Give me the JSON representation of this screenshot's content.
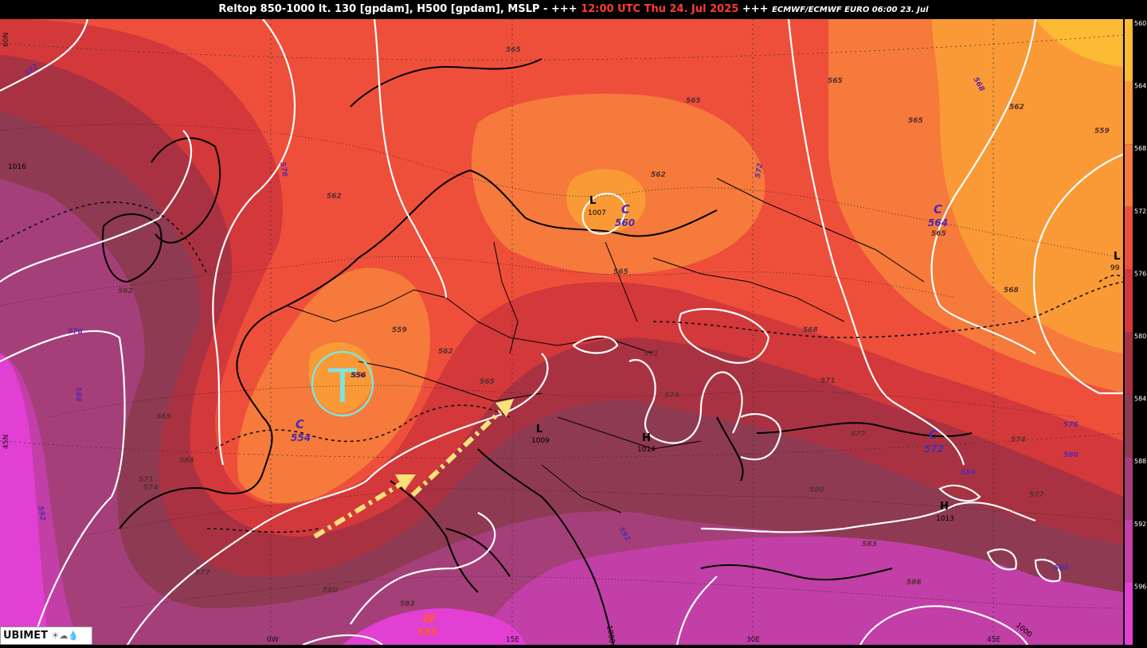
{
  "title": {
    "main": "Reltop 850-1000 lt. 130 [gpdam], H500 [gpdam], MSLP - +++",
    "time": "12:00 UTC Thu 24. Jul 2025",
    "sep": "+++",
    "model": "ECMWF/ECMWF EURO 06:00 23. Jul"
  },
  "legend": {
    "levels": [
      "560",
      "564",
      "568",
      "572",
      "576",
      "580",
      "584",
      "588",
      "592",
      "596"
    ],
    "colors": [
      "#fcba35",
      "#f99a36",
      "#f57a3b",
      "#ee4f3b",
      "#d3383b",
      "#a93242",
      "#8e3a52",
      "#a53f7a",
      "#c13fa6",
      "#e23fd3"
    ]
  },
  "axis_labels": {
    "lat_60": "60N",
    "lat_45": "45N",
    "lon_0": "0W",
    "lon_15": "15E",
    "lon_30": "30E",
    "lon_45": "45E"
  },
  "pressure_centers": [
    {
      "type": "L",
      "value": "1007"
    },
    {
      "type": "L",
      "value": "1009"
    },
    {
      "type": "H",
      "value": "1014"
    },
    {
      "type": "H",
      "value": "1013"
    },
    {
      "type": "L",
      "value": "99"
    }
  ],
  "cold_centers": [
    {
      "letter": "C",
      "value": "560"
    },
    {
      "letter": "C",
      "value": "554"
    },
    {
      "letter": "C",
      "value": "564"
    },
    {
      "letter": "C",
      "value": "572"
    }
  ],
  "warm_center": {
    "letter": "W",
    "value": "585"
  },
  "trough_mark": "T",
  "isobar_labels": [
    "1016",
    "1008",
    "1000"
  ],
  "h500_labels": [
    "572",
    "576",
    "576",
    "588",
    "592",
    "572",
    "568",
    "576",
    "580",
    "584",
    "588",
    "592",
    "556"
  ],
  "reltop_labels": [
    "565",
    "562",
    "559",
    "556",
    "562",
    "565",
    "565",
    "562",
    "565",
    "568",
    "571",
    "574",
    "577",
    "580",
    "583",
    "586",
    "565",
    "565",
    "562",
    "559",
    "562",
    "565",
    "568",
    "571",
    "574",
    "577",
    "580",
    "583",
    "565",
    "568",
    "571",
    "574",
    "577"
  ],
  "logo": {
    "text": "UBIMET"
  }
}
